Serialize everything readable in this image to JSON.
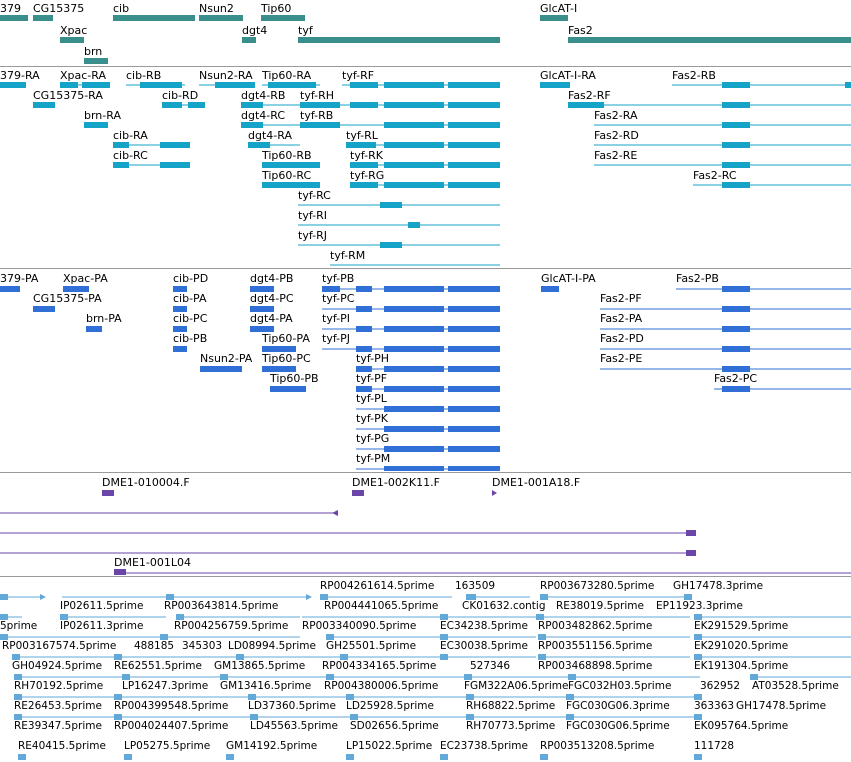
{
  "colors": {
    "gene": "#3a8e8c",
    "transcript": "#16a3c8",
    "protein": "#2f6fd6",
    "clone": "#6b46a8",
    "est": "#62a9d9"
  },
  "genes": {
    "labels": [
      "379",
      "CG15375",
      "cib",
      "Nsun2",
      "Tip60",
      "GlcAT-I",
      "Xpac",
      "dgt4",
      "tyf",
      "Fas2",
      "brn"
    ]
  },
  "transcripts": {
    "labels": [
      "379-RA",
      "Xpac-RA",
      "cib-RB",
      "Nsun2-RA",
      "Tip60-RA",
      "tyf-RF",
      "GlcAT-I-RA",
      "Fas2-RB",
      "CG15375-RA",
      "cib-RD",
      "dgt4-RB",
      "tyf-RH",
      "Fas2-RF",
      "brn-RA",
      "dgt4-RC",
      "tyf-RB",
      "Fas2-RA",
      "cib-RA",
      "dgt4-RA",
      "tyf-RL",
      "Fas2-RD",
      "cib-RC",
      "Tip60-RB",
      "tyf-RK",
      "Fas2-RE",
      "Tip60-RC",
      "tyf-RG",
      "Fas2-RC",
      "tyf-RC",
      "tyf-RI",
      "tyf-RJ",
      "tyf-RM"
    ]
  },
  "proteins": {
    "labels": [
      "379-PA",
      "Xpac-PA",
      "cib-PD",
      "dgt4-PB",
      "tyf-PB",
      "GlcAT-I-PA",
      "Fas2-PB",
      "CG15375-PA",
      "cib-PA",
      "dgt4-PC",
      "tyf-PC",
      "Fas2-PF",
      "brn-PA",
      "cib-PC",
      "dgt4-PA",
      "tyf-PI",
      "Fas2-PA",
      "cib-PB",
      "Tip60-PA",
      "tyf-PJ",
      "Fas2-PD",
      "Nsun2-PA",
      "Tip60-PC",
      "tyf-PH",
      "Fas2-PE",
      "Tip60-PB",
      "tyf-PF",
      "Fas2-PC",
      "tyf-PL",
      "tyf-PK",
      "tyf-PG",
      "tyf-PM"
    ]
  },
  "clones": {
    "labels": [
      "DME1-010004.F",
      "DME1-002K11.F",
      "DME1-001A18.F",
      "DME1-001L04"
    ]
  },
  "ests": {
    "labels": [
      "RP004261614.5prime",
      "163509",
      "RP003673280.5prime",
      "GH17478.3prime",
      "IP02611.5prime",
      "RP003643814.5prime",
      "RP004441065.5prime",
      "CK01632.contig",
      "RE38019.5prime",
      "EP11923.3prime",
      "5prime",
      "IP02611.3prime",
      "RP004256759.5prime",
      "RP003340090.5prime",
      "EC34238.5prime",
      "RP003482862.5prime",
      "EK291529.5prime",
      "RP003167574.5prime",
      "488185",
      "345303",
      "LD08994.5prime",
      "GH25501.5prime",
      "EC30038.5prime",
      "RP003551156.5prime",
      "EK291020.5prime",
      "GH04924.5prime",
      "RE62551.5prime",
      "GM13865.5prime",
      "RP004334165.5prime",
      "527346",
      "RP003468898.5prime",
      "EK191304.5prime",
      "RH70192.5prime",
      "LP16247.3prime",
      "GM13416.5prime",
      "RP004380006.5prime",
      "FGM322A06.5prime",
      "FGC032H03.5prime",
      "362952",
      "AT03528.5prime",
      "RE26453.5prime",
      "RP004399548.5prime",
      "LD37360.5prime",
      "LD25928.5prime",
      "RH68822.5prime",
      "FGC030G06.3prime",
      "363363",
      "GH17478.5prime",
      "RE39347.5prime",
      "RP004024407.5prime",
      "LD45563.5prime",
      "SD02656.5prime",
      "RH70773.5prime",
      "FGC030G06.5prime",
      "EK095764.5prime",
      "RE40415.5prime",
      "LP05275.5prime",
      "GM14192.5prime",
      "LP15022.5prime",
      "EC23738.5prime",
      "RP003513208.5prime",
      "111728"
    ]
  }
}
